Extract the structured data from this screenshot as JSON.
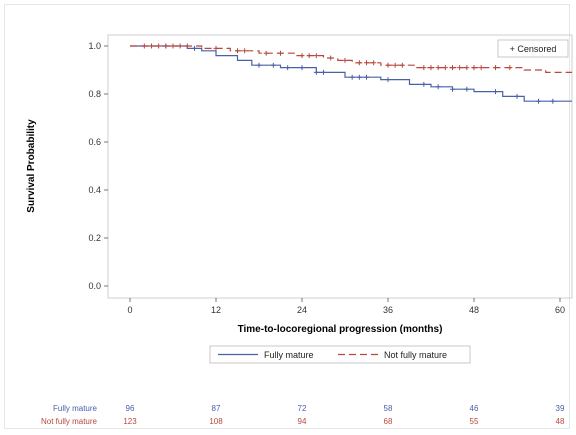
{
  "chart_data": {
    "type": "line",
    "subtype": "kaplan-meier",
    "title": "",
    "xlabel": "Time-to-locoregional progression (months)",
    "ylabel": "Survival Probability",
    "xlim": [
      0,
      60
    ],
    "ylim": [
      0,
      1.0
    ],
    "xticks": [
      "0",
      "12",
      "24",
      "36",
      "48",
      "60"
    ],
    "yticks": [
      "0.0",
      "0.2",
      "0.4",
      "0.6",
      "0.8",
      "1.0"
    ],
    "grid": false,
    "censor_legend": "+ Censored",
    "legend_position": "bottom",
    "series": [
      {
        "name": "Fully mature",
        "color": "#4a60a8",
        "dash": "solid",
        "steps": [
          [
            0,
            1.0
          ],
          [
            8,
            0.99
          ],
          [
            10,
            0.98
          ],
          [
            12,
            0.96
          ],
          [
            15,
            0.94
          ],
          [
            17,
            0.92
          ],
          [
            21,
            0.91
          ],
          [
            26,
            0.89
          ],
          [
            30,
            0.87
          ],
          [
            35,
            0.86
          ],
          [
            39,
            0.84
          ],
          [
            42,
            0.83
          ],
          [
            45,
            0.82
          ],
          [
            48,
            0.81
          ],
          [
            52,
            0.79
          ],
          [
            55,
            0.77
          ],
          [
            62,
            0.77
          ]
        ],
        "censored": [
          [
            3,
            1.0
          ],
          [
            5,
            1.0
          ],
          [
            9,
            0.99
          ],
          [
            18,
            0.92
          ],
          [
            20,
            0.92
          ],
          [
            22,
            0.91
          ],
          [
            24,
            0.91
          ],
          [
            26,
            0.89
          ],
          [
            27,
            0.89
          ],
          [
            31,
            0.87
          ],
          [
            32,
            0.87
          ],
          [
            33,
            0.87
          ],
          [
            36,
            0.86
          ],
          [
            41,
            0.84
          ],
          [
            43,
            0.83
          ],
          [
            45,
            0.82
          ],
          [
            47,
            0.82
          ],
          [
            51,
            0.81
          ],
          [
            54,
            0.79
          ],
          [
            57,
            0.77
          ],
          [
            59,
            0.77
          ]
        ]
      },
      {
        "name": "Not fully mature",
        "color": "#b9473c",
        "dash": "dashed",
        "steps": [
          [
            0,
            1.0
          ],
          [
            10,
            0.99
          ],
          [
            14,
            0.98
          ],
          [
            18,
            0.97
          ],
          [
            23,
            0.96
          ],
          [
            27,
            0.95
          ],
          [
            29,
            0.94
          ],
          [
            31,
            0.93
          ],
          [
            35,
            0.92
          ],
          [
            40,
            0.91
          ],
          [
            55,
            0.9
          ],
          [
            58,
            0.89
          ],
          [
            62,
            0.89
          ]
        ],
        "censored": [
          [
            2,
            1.0
          ],
          [
            3,
            1.0
          ],
          [
            4,
            1.0
          ],
          [
            5,
            1.0
          ],
          [
            6,
            1.0
          ],
          [
            7,
            1.0
          ],
          [
            8,
            1.0
          ],
          [
            12,
            0.99
          ],
          [
            15,
            0.98
          ],
          [
            16,
            0.98
          ],
          [
            19,
            0.97
          ],
          [
            21,
            0.97
          ],
          [
            24,
            0.96
          ],
          [
            25,
            0.96
          ],
          [
            26,
            0.96
          ],
          [
            28,
            0.95
          ],
          [
            30,
            0.94
          ],
          [
            32,
            0.93
          ],
          [
            33,
            0.93
          ],
          [
            34,
            0.93
          ],
          [
            36,
            0.92
          ],
          [
            37,
            0.92
          ],
          [
            38,
            0.92
          ],
          [
            41,
            0.91
          ],
          [
            42,
            0.91
          ],
          [
            43,
            0.91
          ],
          [
            44,
            0.91
          ],
          [
            45,
            0.91
          ],
          [
            46,
            0.91
          ],
          [
            47,
            0.91
          ],
          [
            48,
            0.91
          ],
          [
            49,
            0.91
          ],
          [
            51,
            0.91
          ],
          [
            53,
            0.91
          ]
        ]
      }
    ],
    "at_risk": {
      "times": [
        0,
        12,
        24,
        36,
        48,
        60
      ],
      "rows": [
        {
          "name": "Fully mature",
          "color": "#4a60a8",
          "values": [
            "96",
            "87",
            "72",
            "58",
            "46",
            "39"
          ]
        },
        {
          "name": "Not fully mature",
          "color": "#b9473c",
          "values": [
            "123",
            "108",
            "94",
            "68",
            "55",
            "48"
          ]
        }
      ]
    }
  }
}
